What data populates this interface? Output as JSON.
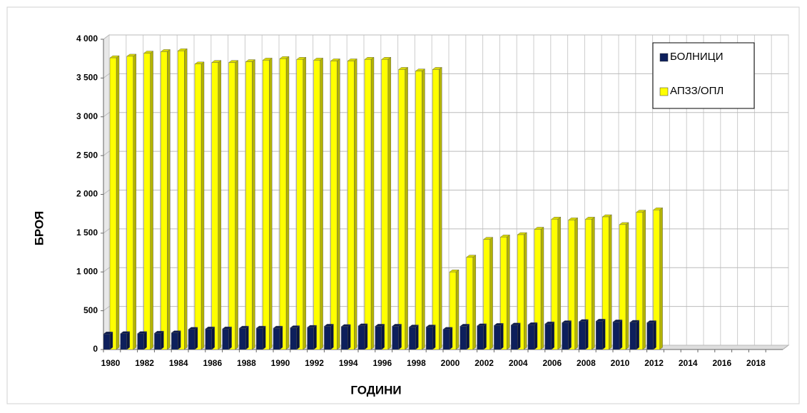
{
  "chart_data": {
    "type": "bar",
    "categories": [
      "1980",
      null,
      "1982",
      null,
      "1984",
      null,
      "1986",
      null,
      "1988",
      null,
      "1990",
      null,
      "1992",
      null,
      "1994",
      null,
      "1996",
      null,
      "1998",
      null,
      "2000",
      null,
      "2002",
      null,
      "2004",
      null,
      "2006",
      null,
      "2008",
      null,
      "2010",
      null,
      "2012",
      null,
      "2014",
      null,
      "2016",
      null,
      "2018",
      null
    ],
    "series": [
      {
        "name": "БОЛНИЦИ",
        "color": "#0d1f5c",
        "values": [
          200,
          205,
          205,
          210,
          215,
          260,
          265,
          265,
          275,
          275,
          275,
          280,
          285,
          300,
          295,
          305,
          300,
          300,
          290,
          290,
          260,
          300,
          305,
          310,
          315,
          320,
          330,
          345,
          360,
          365,
          355,
          350,
          345,
          null,
          null,
          null,
          null,
          null,
          null,
          null
        ]
      },
      {
        "name": "АПЗЗ/ОПЛ",
        "color": "#ffff00",
        "values": [
          3760,
          3780,
          3820,
          3840,
          3850,
          3680,
          3700,
          3700,
          3710,
          3730,
          3750,
          3740,
          3730,
          3720,
          3720,
          3740,
          3740,
          3610,
          3590,
          3610,
          1000,
          1190,
          1420,
          1450,
          1480,
          1550,
          1680,
          1670,
          1680,
          1710,
          1610,
          1770,
          1800,
          null,
          null,
          null,
          null,
          null,
          null,
          null
        ]
      }
    ],
    "ylim": [
      0,
      4000
    ],
    "yticks": [
      0,
      500,
      {
        "value": 1000,
        "label": "1 000"
      },
      {
        "value": 1500,
        "label": "1 500"
      },
      {
        "value": 2000,
        "label": "2 000"
      },
      {
        "value": 2500,
        "label": "2 500"
      },
      {
        "value": 3000,
        "label": "3 000"
      },
      {
        "value": 3500,
        "label": "3 500"
      },
      {
        "value": 4000,
        "label": "4 000"
      }
    ],
    "xlabel": "ГОДИНИ",
    "ylabel": "БРОЯ",
    "grid": true,
    "legend": "top-right"
  }
}
